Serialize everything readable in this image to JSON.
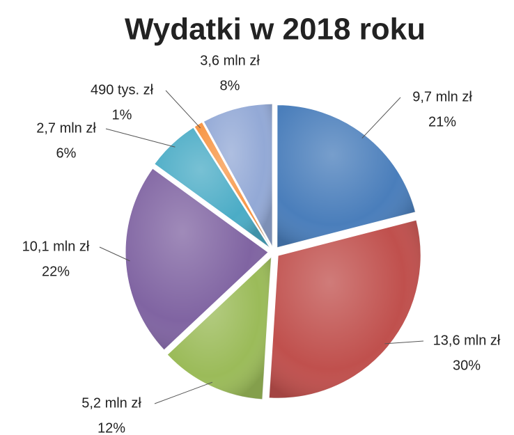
{
  "chart_data": {
    "type": "pie",
    "title": "Wydatki w 2018 roku",
    "values": [
      21,
      30,
      12,
      22,
      6,
      1,
      8
    ],
    "value_labels": [
      "21%",
      "30%",
      "12%",
      "22%",
      "6%",
      "1%",
      "8%"
    ],
    "amount_labels": [
      "9,7 mln zł",
      "13,6 mln zł",
      "5,2 mln zł",
      "10,1 mln zł",
      "2,7 mln zł",
      "490 tys. zł",
      "3,6 mln zł"
    ],
    "colors": [
      "#4a7ebb",
      "#c0504d",
      "#9bbb59",
      "#8064a2",
      "#4bacc6",
      "#f79646",
      "#93a9d6"
    ]
  }
}
